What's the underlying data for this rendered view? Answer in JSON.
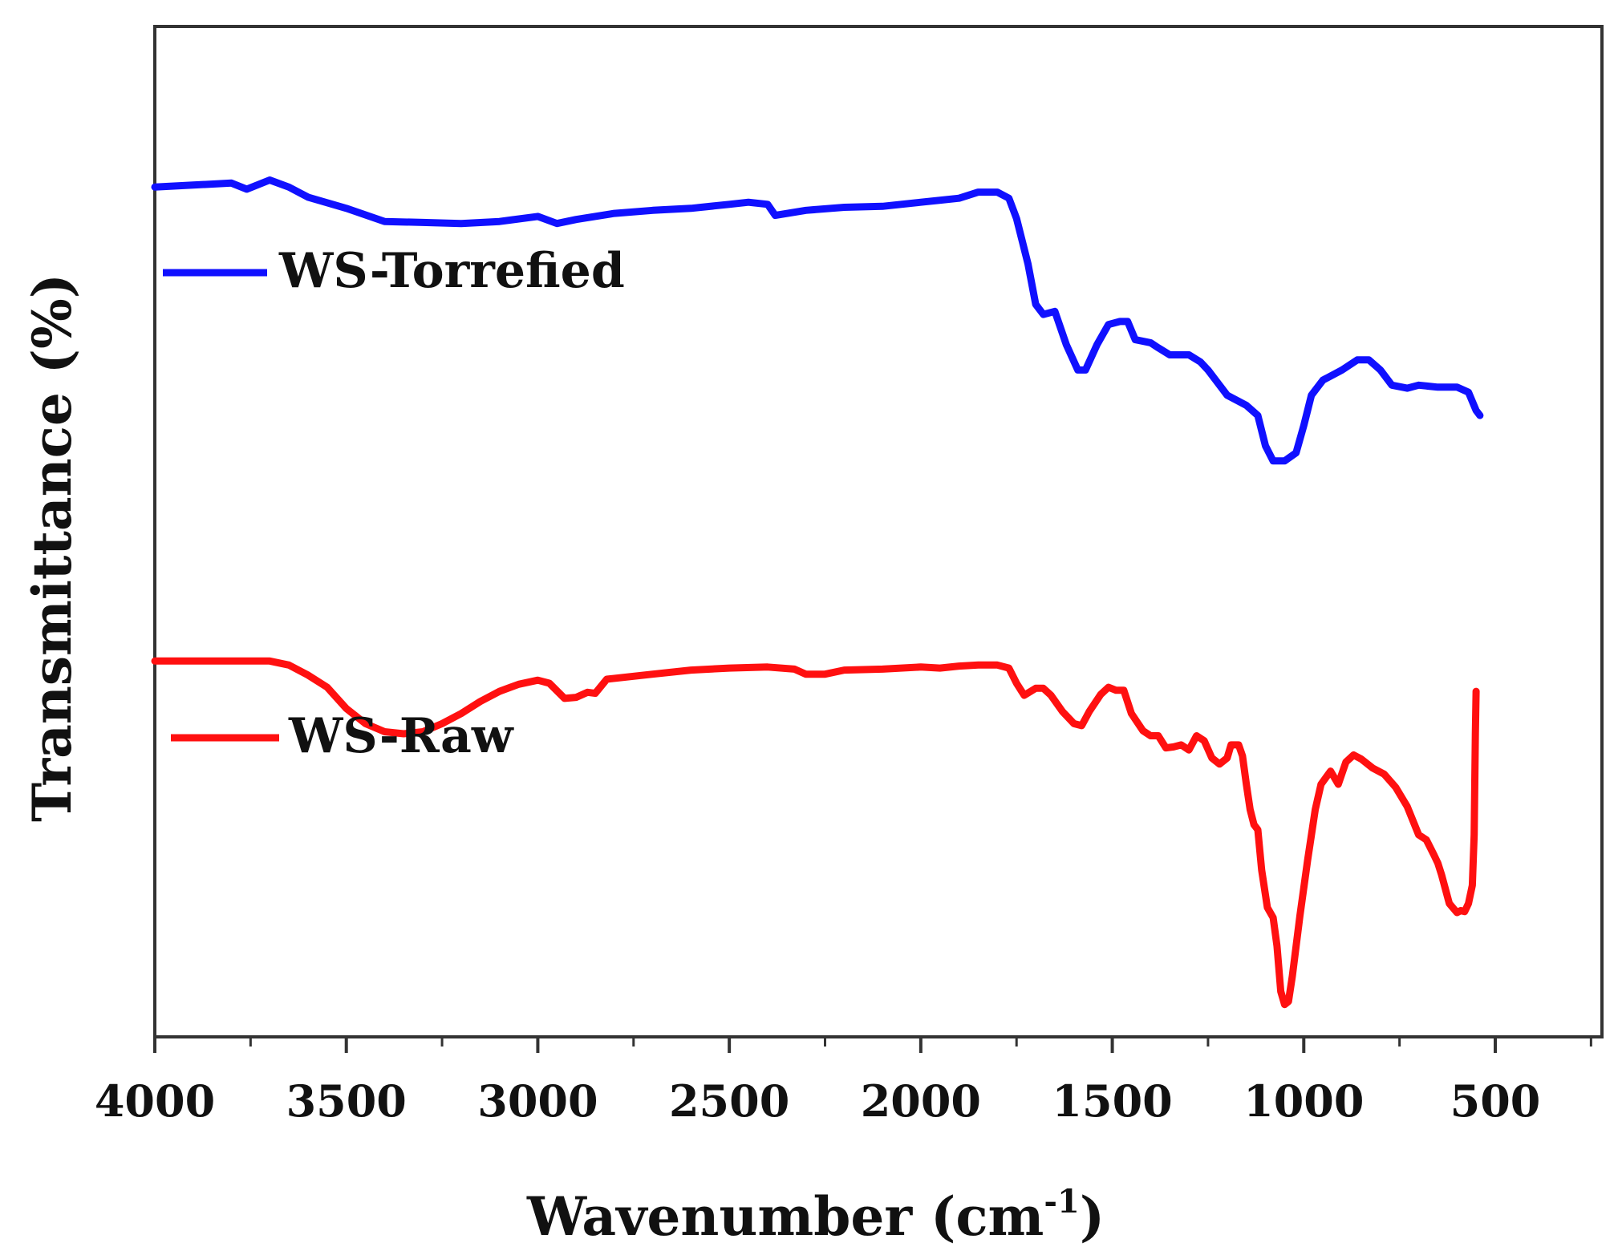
{
  "chart_data": {
    "type": "line",
    "title": "",
    "xlabel": "Wavenumber (cm",
    "xlabel_superscript": "-1",
    "xlabel_close": ")",
    "ylabel": "Transmittance (%)",
    "xlim": [
      4000,
      100
    ],
    "ylim": [
      0,
      100
    ],
    "x_ticks": [
      4000,
      3500,
      3000,
      2500,
      2000,
      1500,
      1000,
      500
    ],
    "x_tick_labels": [
      "4000",
      "3500",
      "3000",
      "2500",
      "2000",
      "1500",
      "1000",
      "500"
    ],
    "y_ticks_shown": false,
    "grid": false,
    "legend_placement": "inline-left",
    "series": [
      {
        "name": "WS-Torrefied",
        "color": "#1010ff",
        "points": [
          [
            4000,
            84.1
          ],
          [
            3900,
            84.3
          ],
          [
            3800,
            84.5
          ],
          [
            3760,
            83.9
          ],
          [
            3700,
            84.8
          ],
          [
            3650,
            84.1
          ],
          [
            3600,
            83.1
          ],
          [
            3500,
            82.0
          ],
          [
            3400,
            80.7
          ],
          [
            3300,
            80.6
          ],
          [
            3200,
            80.5
          ],
          [
            3100,
            80.7
          ],
          [
            3000,
            81.2
          ],
          [
            2950,
            80.5
          ],
          [
            2900,
            80.9
          ],
          [
            2800,
            81.5
          ],
          [
            2700,
            81.8
          ],
          [
            2600,
            82.0
          ],
          [
            2500,
            82.4
          ],
          [
            2450,
            82.6
          ],
          [
            2400,
            82.4
          ],
          [
            2380,
            81.3
          ],
          [
            2300,
            81.8
          ],
          [
            2200,
            82.1
          ],
          [
            2100,
            82.2
          ],
          [
            2000,
            82.6
          ],
          [
            1900,
            83.0
          ],
          [
            1850,
            83.6
          ],
          [
            1800,
            83.6
          ],
          [
            1770,
            83.0
          ],
          [
            1750,
            81.0
          ],
          [
            1720,
            76.5
          ],
          [
            1700,
            72.5
          ],
          [
            1680,
            71.5
          ],
          [
            1650,
            71.8
          ],
          [
            1620,
            68.5
          ],
          [
            1590,
            66.0
          ],
          [
            1570,
            66.0
          ],
          [
            1540,
            68.5
          ],
          [
            1510,
            70.5
          ],
          [
            1480,
            70.8
          ],
          [
            1460,
            70.8
          ],
          [
            1440,
            69.0
          ],
          [
            1400,
            68.7
          ],
          [
            1380,
            68.2
          ],
          [
            1350,
            67.5
          ],
          [
            1300,
            67.5
          ],
          [
            1270,
            66.8
          ],
          [
            1250,
            66.0
          ],
          [
            1200,
            63.5
          ],
          [
            1150,
            62.5
          ],
          [
            1120,
            61.5
          ],
          [
            1100,
            58.5
          ],
          [
            1080,
            57.0
          ],
          [
            1050,
            57.0
          ],
          [
            1020,
            57.8
          ],
          [
            1000,
            60.5
          ],
          [
            980,
            63.5
          ],
          [
            950,
            65.0
          ],
          [
            900,
            66.0
          ],
          [
            860,
            67.0
          ],
          [
            830,
            67.0
          ],
          [
            800,
            66.0
          ],
          [
            770,
            64.5
          ],
          [
            730,
            64.2
          ],
          [
            700,
            64.5
          ],
          [
            650,
            64.3
          ],
          [
            600,
            64.3
          ],
          [
            570,
            63.8
          ],
          [
            550,
            62.0
          ],
          [
            540,
            61.5
          ]
        ]
      },
      {
        "name": "WS-Raw",
        "color": "#ff1010",
        "points": [
          [
            4000,
            37.2
          ],
          [
            3900,
            37.2
          ],
          [
            3800,
            37.2
          ],
          [
            3700,
            37.2
          ],
          [
            3650,
            36.8
          ],
          [
            3600,
            35.8
          ],
          [
            3550,
            34.6
          ],
          [
            3500,
            32.5
          ],
          [
            3450,
            31.0
          ],
          [
            3400,
            30.2
          ],
          [
            3350,
            30.0
          ],
          [
            3300,
            30.2
          ],
          [
            3250,
            31.0
          ],
          [
            3200,
            32.0
          ],
          [
            3150,
            33.2
          ],
          [
            3100,
            34.2
          ],
          [
            3050,
            34.9
          ],
          [
            3000,
            35.3
          ],
          [
            2970,
            35.0
          ],
          [
            2930,
            33.5
          ],
          [
            2900,
            33.6
          ],
          [
            2870,
            34.1
          ],
          [
            2850,
            34.0
          ],
          [
            2820,
            35.4
          ],
          [
            2700,
            35.9
          ],
          [
            2600,
            36.3
          ],
          [
            2500,
            36.5
          ],
          [
            2400,
            36.6
          ],
          [
            2330,
            36.4
          ],
          [
            2300,
            35.9
          ],
          [
            2250,
            35.9
          ],
          [
            2200,
            36.3
          ],
          [
            2100,
            36.4
          ],
          [
            2000,
            36.6
          ],
          [
            1950,
            36.5
          ],
          [
            1900,
            36.7
          ],
          [
            1850,
            36.8
          ],
          [
            1800,
            36.8
          ],
          [
            1770,
            36.5
          ],
          [
            1750,
            35.0
          ],
          [
            1730,
            33.8
          ],
          [
            1700,
            34.5
          ],
          [
            1680,
            34.5
          ],
          [
            1660,
            33.8
          ],
          [
            1630,
            32.2
          ],
          [
            1600,
            31.0
          ],
          [
            1580,
            30.8
          ],
          [
            1560,
            32.2
          ],
          [
            1530,
            33.9
          ],
          [
            1510,
            34.6
          ],
          [
            1490,
            34.3
          ],
          [
            1470,
            34.3
          ],
          [
            1450,
            32.0
          ],
          [
            1420,
            30.3
          ],
          [
            1400,
            29.8
          ],
          [
            1380,
            29.8
          ],
          [
            1360,
            28.6
          ],
          [
            1340,
            28.7
          ],
          [
            1320,
            28.9
          ],
          [
            1300,
            28.4
          ],
          [
            1280,
            29.8
          ],
          [
            1260,
            29.3
          ],
          [
            1240,
            27.6
          ],
          [
            1220,
            27.0
          ],
          [
            1200,
            27.6
          ],
          [
            1190,
            28.9
          ],
          [
            1170,
            28.9
          ],
          [
            1160,
            27.8
          ],
          [
            1150,
            25.0
          ],
          [
            1140,
            22.5
          ],
          [
            1130,
            21.0
          ],
          [
            1120,
            20.5
          ],
          [
            1110,
            16.5
          ],
          [
            1095,
            12.8
          ],
          [
            1080,
            11.8
          ],
          [
            1070,
            9.0
          ],
          [
            1060,
            4.5
          ],
          [
            1050,
            3.2
          ],
          [
            1040,
            3.5
          ],
          [
            1030,
            6.0
          ],
          [
            1010,
            12.0
          ],
          [
            990,
            17.5
          ],
          [
            970,
            22.5
          ],
          [
            955,
            25.0
          ],
          [
            930,
            26.3
          ],
          [
            910,
            25.0
          ],
          [
            890,
            27.2
          ],
          [
            870,
            27.9
          ],
          [
            850,
            27.5
          ],
          [
            820,
            26.6
          ],
          [
            790,
            26.0
          ],
          [
            760,
            24.7
          ],
          [
            730,
            22.8
          ],
          [
            700,
            20.0
          ],
          [
            680,
            19.5
          ],
          [
            660,
            18.0
          ],
          [
            650,
            17.2
          ],
          [
            640,
            16.0
          ],
          [
            620,
            13.2
          ],
          [
            600,
            12.3
          ],
          [
            590,
            12.5
          ],
          [
            580,
            12.4
          ],
          [
            570,
            13.2
          ],
          [
            560,
            15.0
          ],
          [
            555,
            20.0
          ],
          [
            552,
            30.0
          ],
          [
            550,
            34.2
          ]
        ]
      }
    ]
  }
}
